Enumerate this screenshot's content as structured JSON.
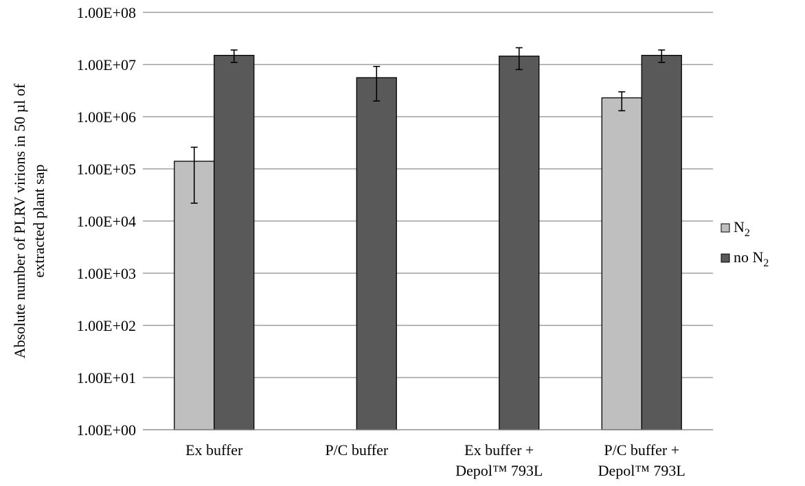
{
  "chart_data": {
    "type": "bar",
    "scale": "log10",
    "categories": [
      [
        "Ex buffer"
      ],
      [
        "P/C buffer"
      ],
      [
        "Ex buffer +",
        "Depol™ 793L"
      ],
      [
        "P/C buffer +",
        "Depol™ 793L"
      ]
    ],
    "ylabel_lines": [
      "Absolute number of PLRV virions in 50 µl of",
      "extracted plant sap"
    ],
    "ylim": [
      1,
      100000000
    ],
    "yticks": [
      "1.00E+00",
      "1.00E+01",
      "1.00E+02",
      "1.00E+03",
      "1.00E+04",
      "1.00E+05",
      "1.00E+06",
      "1.00E+07",
      "1.00E+08"
    ],
    "grid": true,
    "legend_position": "right",
    "series": [
      {
        "name": "N",
        "name_sub": "2",
        "color": "#bfbfbf",
        "values": [
          140000,
          null,
          null,
          2300000
        ],
        "err_low": [
          22000,
          null,
          null,
          1300000
        ],
        "err_high": [
          260000,
          null,
          null,
          3000000
        ]
      },
      {
        "name": "no N",
        "name_sub": "2",
        "color": "#595959",
        "values": [
          15000000,
          5600000,
          14500000,
          15000000
        ],
        "err_low": [
          11000000,
          2000000,
          8000000,
          11000000
        ],
        "err_high": [
          19000000,
          9200000,
          21000000,
          19000000
        ]
      }
    ]
  }
}
